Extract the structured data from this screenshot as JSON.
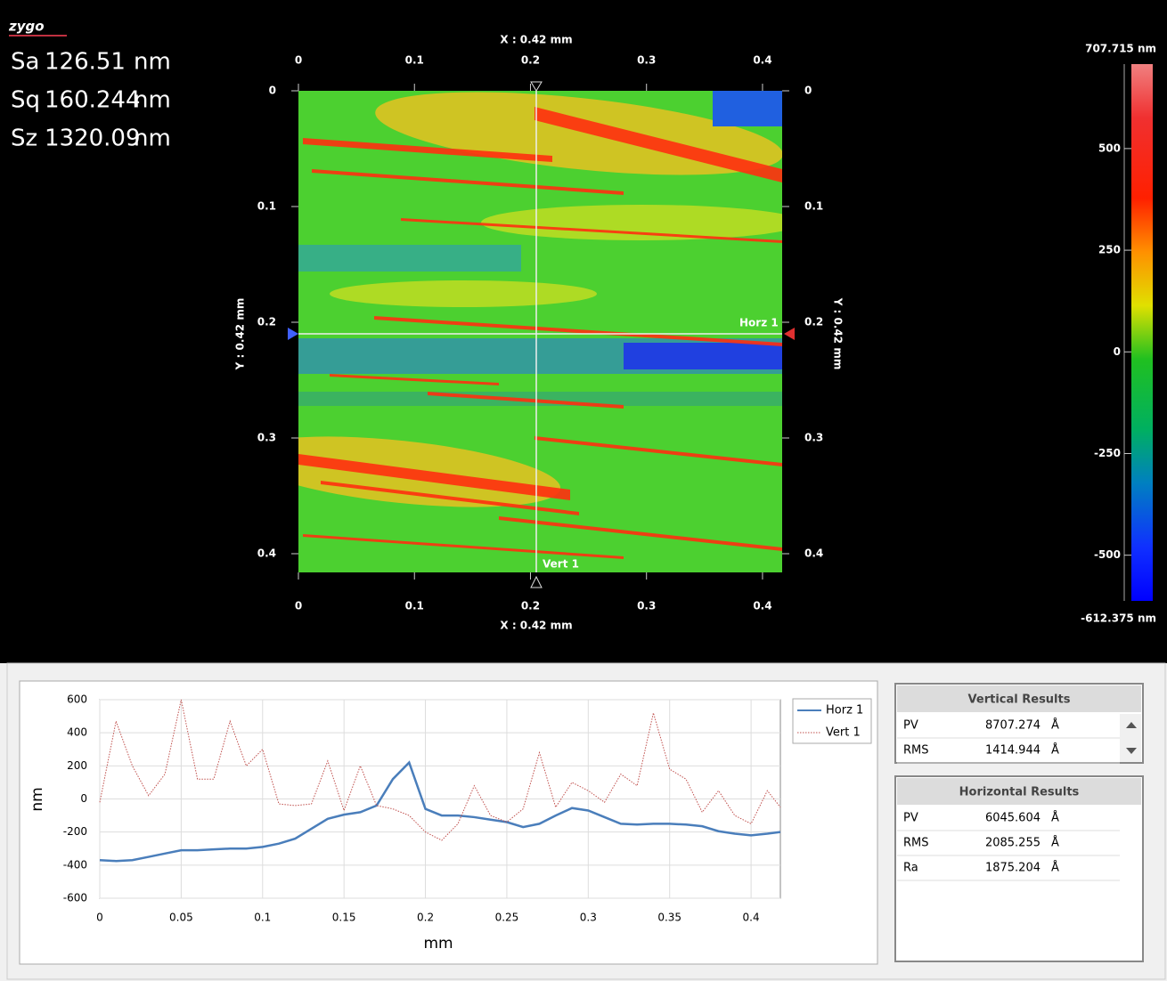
{
  "logo": "zygo",
  "stats": [
    {
      "label": "Sa",
      "value": "126.51",
      "unit": "nm"
    },
    {
      "label": "Sq",
      "value": "160.244",
      "unit": "nm"
    },
    {
      "label": "Sz",
      "value": "1320.09",
      "unit": "nm"
    }
  ],
  "map": {
    "x_title": "X : 0.42 mm",
    "y_title": "Y : 0.42 mm",
    "xlim": [
      0,
      0.42
    ],
    "ylim": [
      0,
      0.42
    ],
    "xticks": [
      0,
      0.1,
      0.2,
      0.3,
      0.4
    ],
    "yticks": [
      0,
      0.1,
      0.2,
      0.3,
      0.4
    ],
    "horz_label": "Horz 1",
    "vert_label": "Vert 1"
  },
  "colorbar": {
    "max_label": "707.715 nm",
    "min_label": "-612.375 nm",
    "lim": [
      -612.375,
      707.715
    ],
    "ticks": [
      500,
      250,
      0,
      -250,
      -500
    ]
  },
  "chart_data": {
    "type": "line",
    "xlabel": "mm",
    "ylabel": "nm",
    "xlim": [
      0,
      0.418
    ],
    "ylim": [
      -600,
      600
    ],
    "xticks": [
      0,
      0.05,
      0.1,
      0.15,
      0.2,
      0.25,
      0.3,
      0.35,
      0.4
    ],
    "yticks": [
      -600,
      -400,
      -200,
      0,
      200,
      400,
      600
    ],
    "grid": true,
    "x": [
      0,
      0.01,
      0.02,
      0.03,
      0.04,
      0.05,
      0.06,
      0.07,
      0.08,
      0.09,
      0.1,
      0.11,
      0.12,
      0.13,
      0.14,
      0.15,
      0.16,
      0.17,
      0.18,
      0.19,
      0.2,
      0.21,
      0.22,
      0.23,
      0.24,
      0.25,
      0.26,
      0.27,
      0.28,
      0.29,
      0.3,
      0.31,
      0.32,
      0.33,
      0.34,
      0.35,
      0.36,
      0.37,
      0.38,
      0.39,
      0.4,
      0.41,
      0.418
    ],
    "series": [
      {
        "name": "Horz 1",
        "color": "#4a7ebb",
        "style": "solid",
        "values": [
          -370,
          -375,
          -370,
          -350,
          -330,
          -310,
          -310,
          -305,
          -300,
          -300,
          -290,
          -270,
          -240,
          -180,
          -120,
          -95,
          -80,
          -40,
          120,
          220,
          -60,
          -100,
          -100,
          -110,
          -125,
          -140,
          -170,
          -150,
          -100,
          -55,
          -70,
          -110,
          -150,
          -155,
          -150,
          -150,
          -155,
          -165,
          -195,
          -210,
          -220,
          -210,
          -200
        ]
      },
      {
        "name": "Vert 1",
        "color": "#c0504d",
        "style": "dotted",
        "values": [
          -20,
          470,
          200,
          20,
          150,
          600,
          120,
          120,
          470,
          200,
          300,
          -30,
          -40,
          -30,
          230,
          -70,
          200,
          -40,
          -60,
          -100,
          -200,
          -250,
          -150,
          80,
          -100,
          -140,
          -60,
          280,
          -50,
          100,
          50,
          -20,
          150,
          80,
          520,
          180,
          120,
          -80,
          50,
          -100,
          -150,
          50,
          -50
        ]
      }
    ]
  },
  "vertical_results": {
    "title": "Vertical Results",
    "rows": [
      [
        "PV",
        "8707.274",
        "Å"
      ],
      [
        "RMS",
        "1414.944",
        "Å"
      ]
    ]
  },
  "horizontal_results": {
    "title": "Horizontal Results",
    "rows": [
      [
        "PV",
        "6045.604",
        "Å"
      ],
      [
        "RMS",
        "2085.255",
        "Å"
      ],
      [
        "Ra",
        "1875.204",
        "Å"
      ]
    ]
  }
}
